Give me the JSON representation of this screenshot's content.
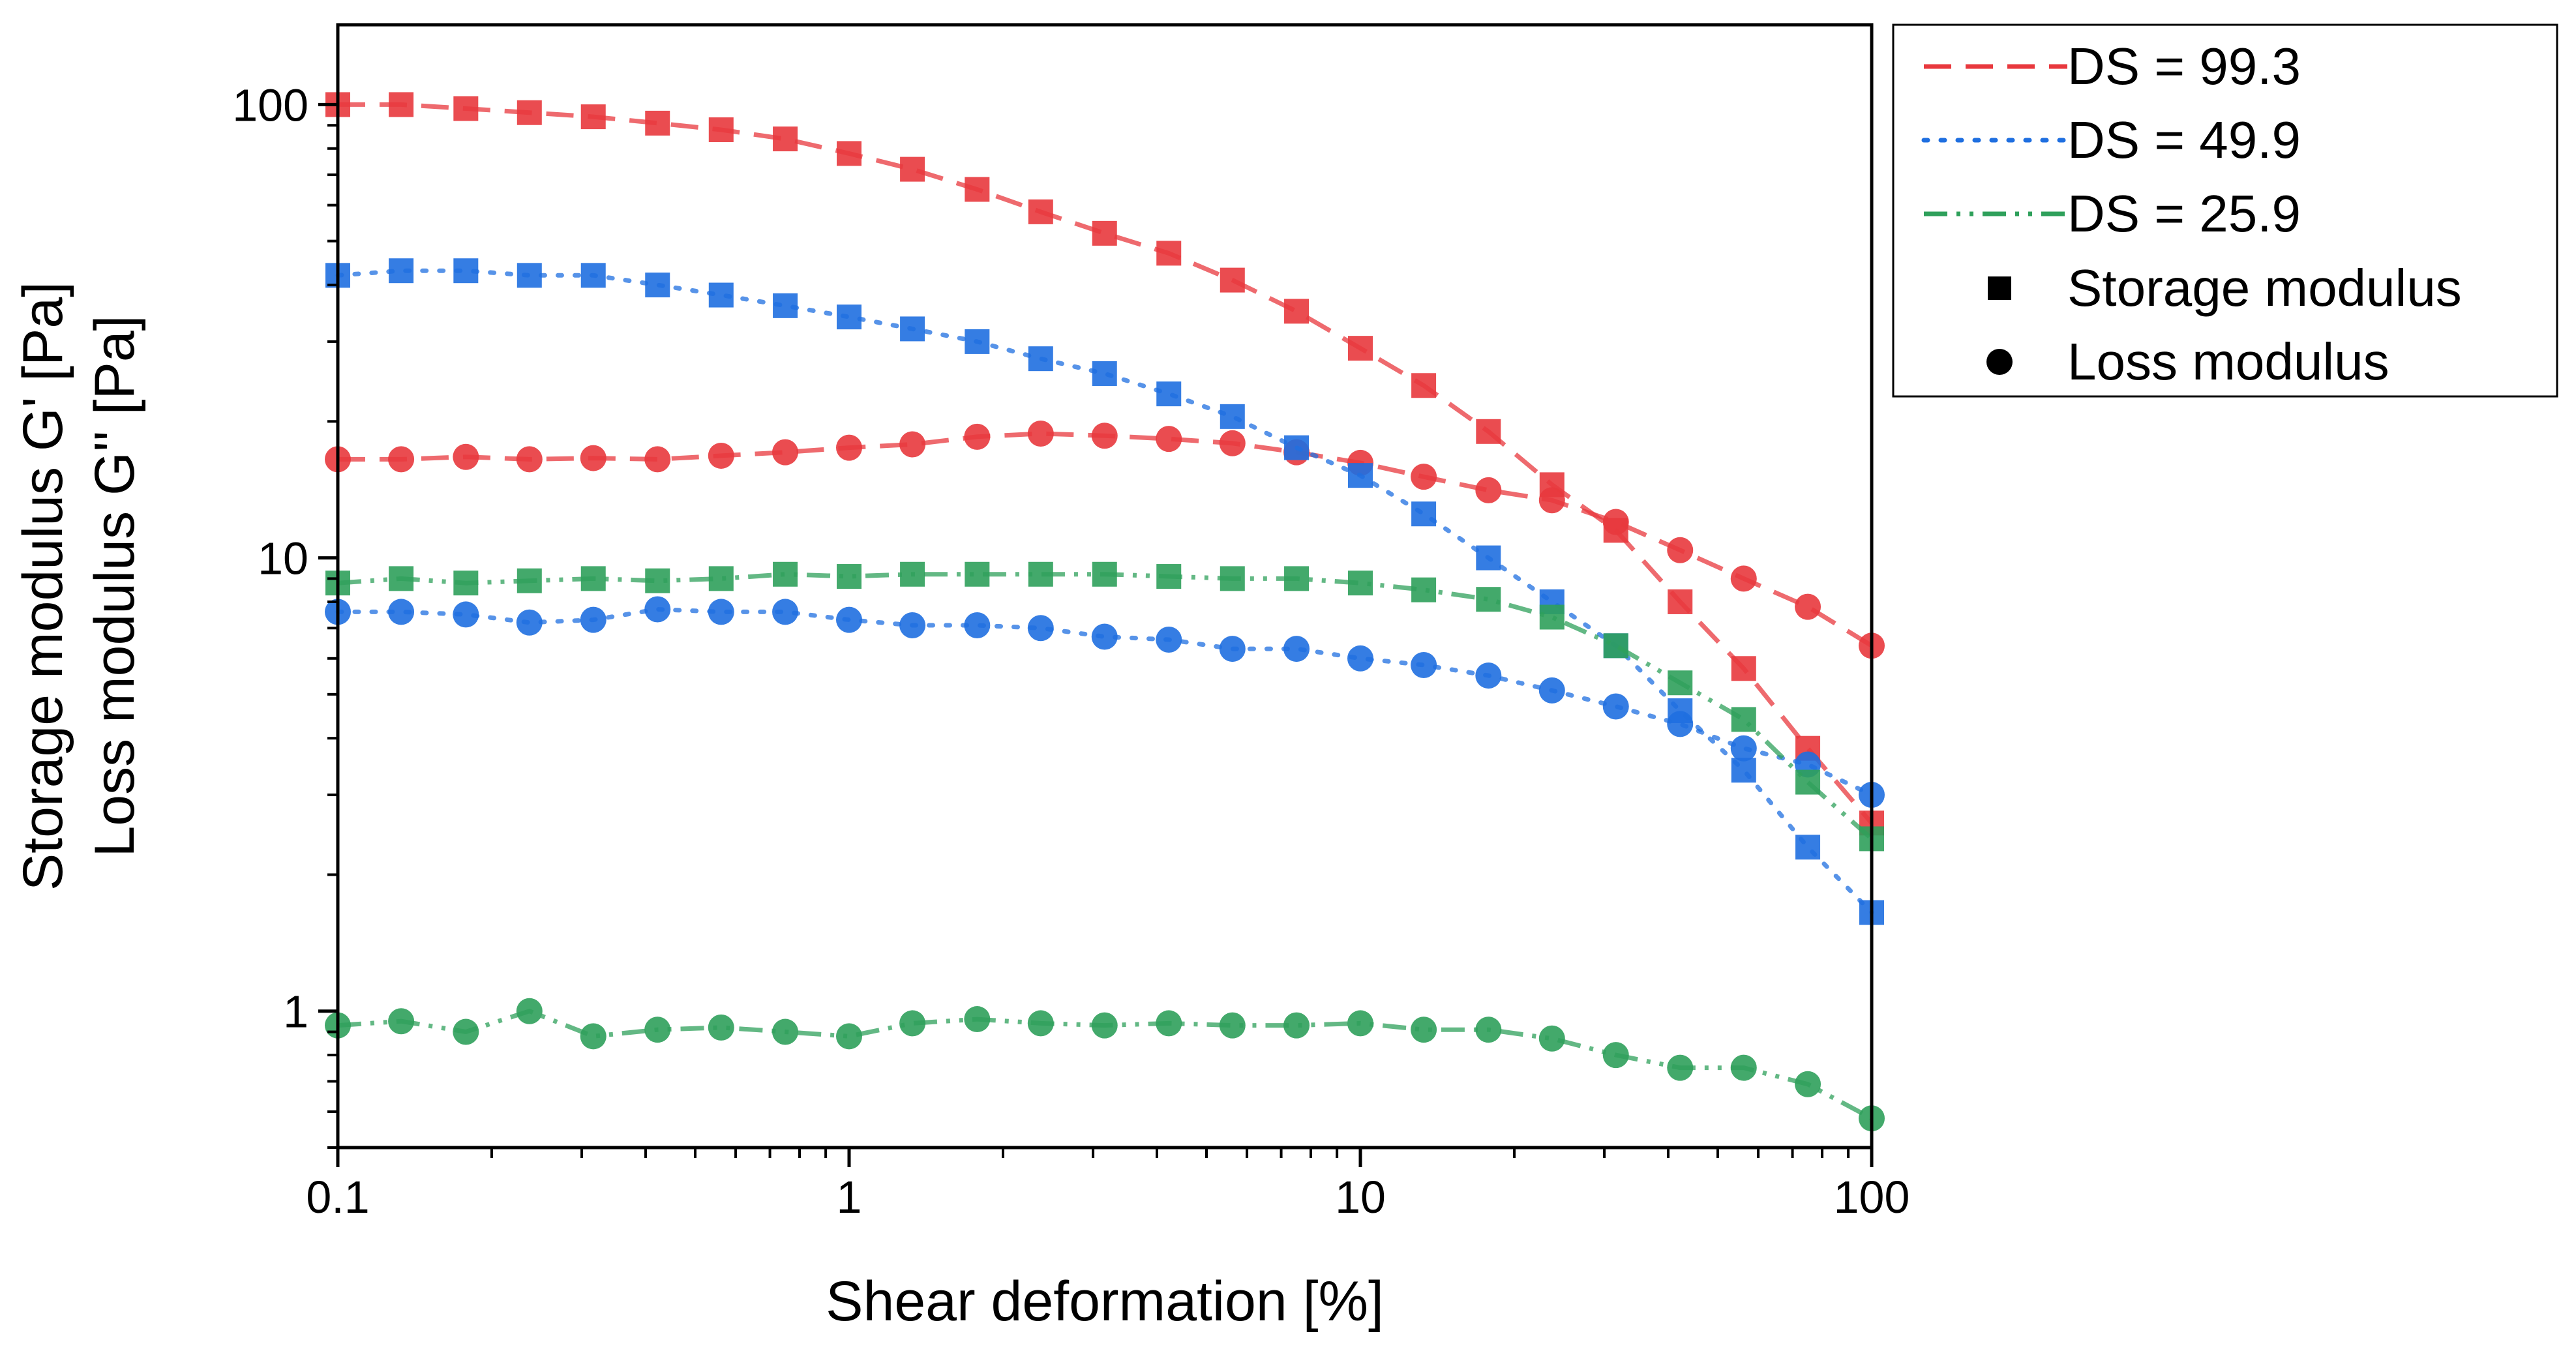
{
  "chart_data": {
    "type": "scatter",
    "xscale": "log",
    "yscale": "log",
    "xlim": [
      0.1,
      100
    ],
    "ylim": [
      0.5,
      150
    ],
    "xlabel": "Shear deformation [%]",
    "ylabel_line1": "Storage modulus G' [Pa]",
    "ylabel_line2": "Loss modulus G'' [Pa]",
    "xticks": [
      {
        "value": 0.1,
        "label": "0.1"
      },
      {
        "value": 1,
        "label": "1"
      },
      {
        "value": 10,
        "label": "10"
      },
      {
        "value": 100,
        "label": "100"
      }
    ],
    "yticks": [
      {
        "value": 1,
        "label": "1"
      },
      {
        "value": 10,
        "label": "10"
      },
      {
        "value": 100,
        "label": "100"
      }
    ],
    "x": [
      0.1,
      0.133,
      0.178,
      0.237,
      0.316,
      0.422,
      0.562,
      0.75,
      1.0,
      1.33,
      1.78,
      2.37,
      3.16,
      4.22,
      5.62,
      7.5,
      10.0,
      13.3,
      17.8,
      23.7,
      31.6,
      42.2,
      56.2,
      75.0,
      100.0
    ],
    "series": [
      {
        "name": "DS = 99.3",
        "color": "#e8383d",
        "dash": "dash",
        "storage": [
          100,
          100,
          98,
          96,
          94,
          91,
          88,
          84,
          78,
          72,
          65,
          58,
          52,
          47,
          41,
          35,
          29,
          24,
          19,
          14.5,
          11.5,
          8,
          5.7,
          3.8,
          2.6
        ],
        "loss": [
          16.5,
          16.5,
          16.7,
          16.5,
          16.6,
          16.5,
          16.8,
          17.1,
          17.5,
          17.8,
          18.5,
          18.8,
          18.6,
          18.3,
          17.9,
          17.1,
          16.2,
          15.1,
          14.1,
          13.4,
          12.0,
          10.4,
          9.0,
          7.8,
          6.4
        ]
      },
      {
        "name": "DS = 49.9",
        "color": "#1f6fe0",
        "dash": "dot",
        "storage": [
          42,
          43,
          43,
          42,
          42,
          40,
          38,
          36,
          34,
          32,
          30,
          27.5,
          25.5,
          23,
          20.5,
          17.5,
          15.2,
          12.5,
          10,
          8,
          6.4,
          4.6,
          3.4,
          2.3,
          1.65
        ],
        "loss": [
          7.6,
          7.6,
          7.5,
          7.2,
          7.3,
          7.7,
          7.6,
          7.6,
          7.3,
          7.1,
          7.1,
          7.0,
          6.7,
          6.6,
          6.3,
          6.3,
          6.0,
          5.8,
          5.5,
          5.1,
          4.7,
          4.3,
          3.8,
          3.5,
          3.0
        ]
      },
      {
        "name": "DS = 25.9",
        "color": "#2fa05b",
        "dash": "dashdotdot",
        "storage": [
          8.8,
          9.0,
          8.8,
          8.9,
          9.0,
          8.9,
          9.0,
          9.2,
          9.1,
          9.2,
          9.2,
          9.2,
          9.2,
          9.1,
          9.0,
          9.0,
          8.8,
          8.5,
          8.1,
          7.4,
          6.4,
          5.3,
          4.4,
          3.2,
          2.4
        ],
        "loss": [
          0.93,
          0.95,
          0.9,
          1.0,
          0.88,
          0.91,
          0.92,
          0.9,
          0.88,
          0.94,
          0.96,
          0.94,
          0.93,
          0.94,
          0.93,
          0.93,
          0.94,
          0.91,
          0.91,
          0.87,
          0.8,
          0.75,
          0.75,
          0.69,
          0.58
        ]
      }
    ],
    "legend": {
      "position": "outside-top-right",
      "entries": [
        {
          "label": "DS = 99.3",
          "kind": "line",
          "series": 0
        },
        {
          "label": "DS = 49.9",
          "kind": "line",
          "series": 1
        },
        {
          "label": "DS = 25.9",
          "kind": "line",
          "series": 2
        },
        {
          "label": "Storage modulus",
          "kind": "square"
        },
        {
          "label": "Loss modulus",
          "kind": "circle"
        }
      ]
    }
  }
}
